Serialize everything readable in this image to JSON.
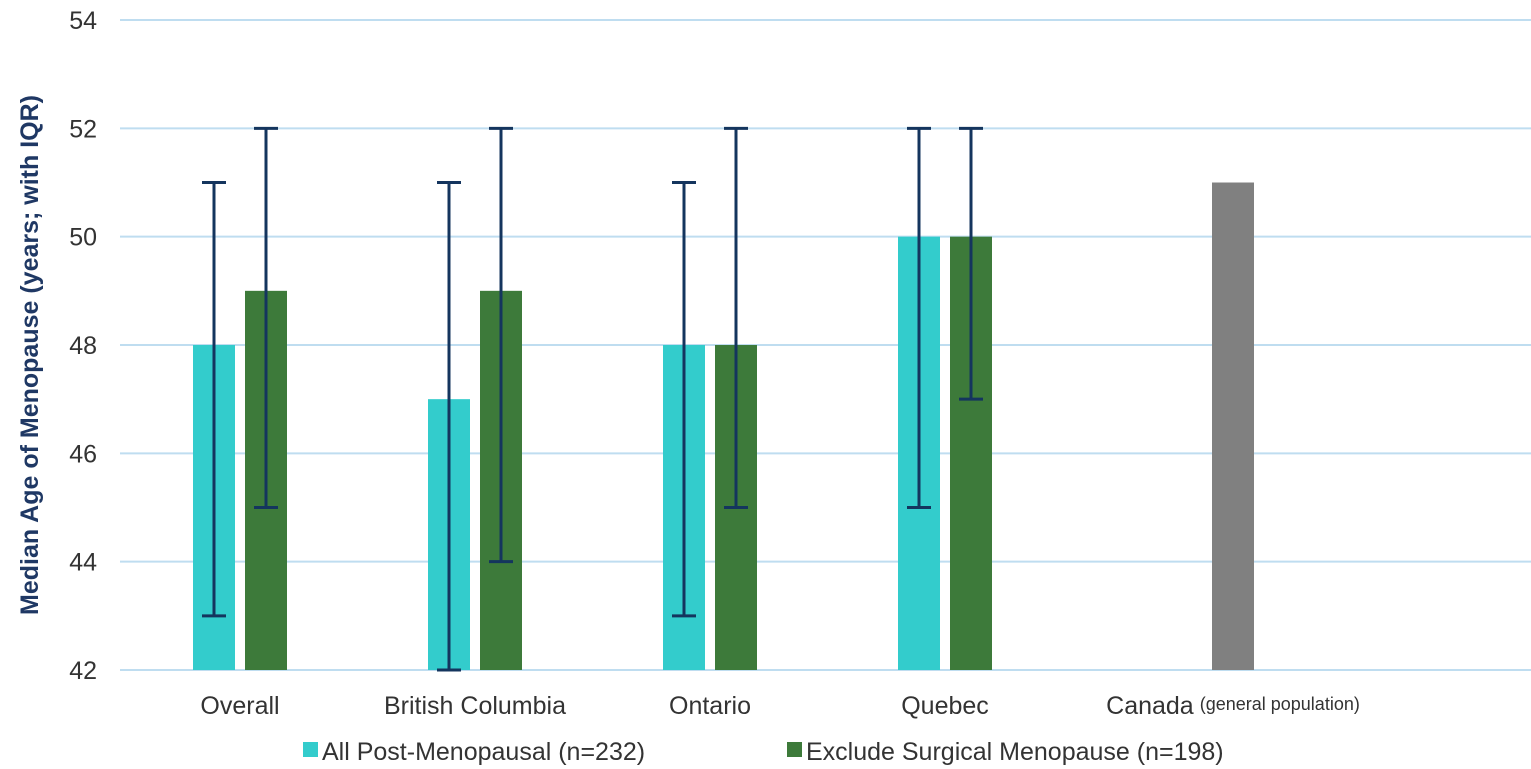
{
  "chart_data": {
    "type": "bar",
    "ylabel": "Median Age of Menopause (years; with IQR)",
    "ylim": [
      42,
      54
    ],
    "yticks": [
      "42",
      "44",
      "46",
      "48",
      "50",
      "52",
      "54"
    ],
    "grid": true,
    "legend_position": "bottom",
    "categories": [
      {
        "label": "Overall",
        "sublabel": ""
      },
      {
        "label": "British Columbia",
        "sublabel": ""
      },
      {
        "label": "Ontario",
        "sublabel": ""
      },
      {
        "label": "Quebec",
        "sublabel": ""
      },
      {
        "label": "Canada",
        "sublabel": "(general population)"
      }
    ],
    "series": [
      {
        "name": "All Post-Menopausal (n=232)",
        "color": "#33CCCC",
        "values": [
          48,
          47,
          48,
          50,
          null
        ],
        "iqr_low": [
          43,
          42,
          43,
          45,
          null
        ],
        "iqr_high": [
          51,
          51,
          51,
          52,
          null
        ]
      },
      {
        "name": "Exclude Surgical Menopause (n=198)",
        "color": "#3D7A3A",
        "values": [
          49,
          49,
          48,
          50,
          null
        ],
        "iqr_low": [
          45,
          44,
          45,
          47,
          null
        ],
        "iqr_high": [
          52,
          52,
          52,
          52,
          null
        ]
      },
      {
        "name": "",
        "color": "#808080",
        "values": [
          null,
          null,
          null,
          null,
          51
        ],
        "iqr_low": [
          null,
          null,
          null,
          null,
          null
        ],
        "iqr_high": [
          null,
          null,
          null,
          null,
          null
        ]
      }
    ],
    "colors": {
      "gridline": "#BFDDF0",
      "error_bar": "#14355E",
      "ylabel_text": "#1F3864",
      "tick_text": "#333333"
    }
  }
}
